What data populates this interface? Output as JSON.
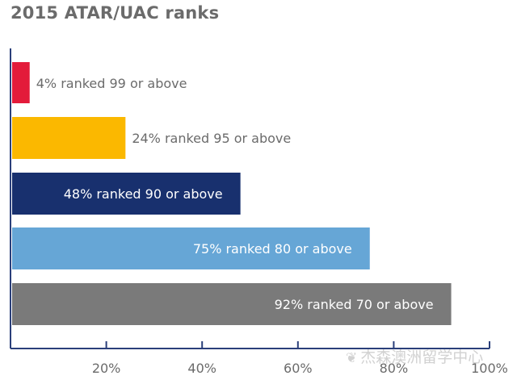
{
  "chart_data": {
    "type": "bar",
    "orientation": "horizontal",
    "title": "2015 ATAR/UAC ranks",
    "xlim": [
      0,
      100
    ],
    "xticks": [
      20,
      40,
      60,
      80,
      100
    ],
    "xtick_labels": [
      "20%",
      "40%",
      "60%",
      "80%",
      "100%"
    ],
    "grid": false,
    "categories": [
      "99 or above",
      "95 or above",
      "90 or above",
      "80 or above",
      "70 or above"
    ],
    "values": [
      4,
      24,
      48,
      75,
      92
    ],
    "bar_labels": [
      "4% ranked 99 or above",
      "24% ranked 95 or above",
      "48% ranked 90 or above",
      "75% ranked 80 or above",
      "92% ranked 70 or above"
    ],
    "colors": [
      "#e31b3a",
      "#fbb800",
      "#18306e",
      "#66a6d6",
      "#7a7a7a"
    ],
    "label_colors": [
      "#6b6b6b",
      "#6b6b6b",
      "#ffffff",
      "#ffffff",
      "#ffffff"
    ],
    "label_placement": [
      "outside",
      "outside",
      "inside",
      "inside",
      "inside"
    ]
  },
  "watermark": {
    "text": "杰森澳洲留学中心",
    "icon": "wechat-icon"
  }
}
